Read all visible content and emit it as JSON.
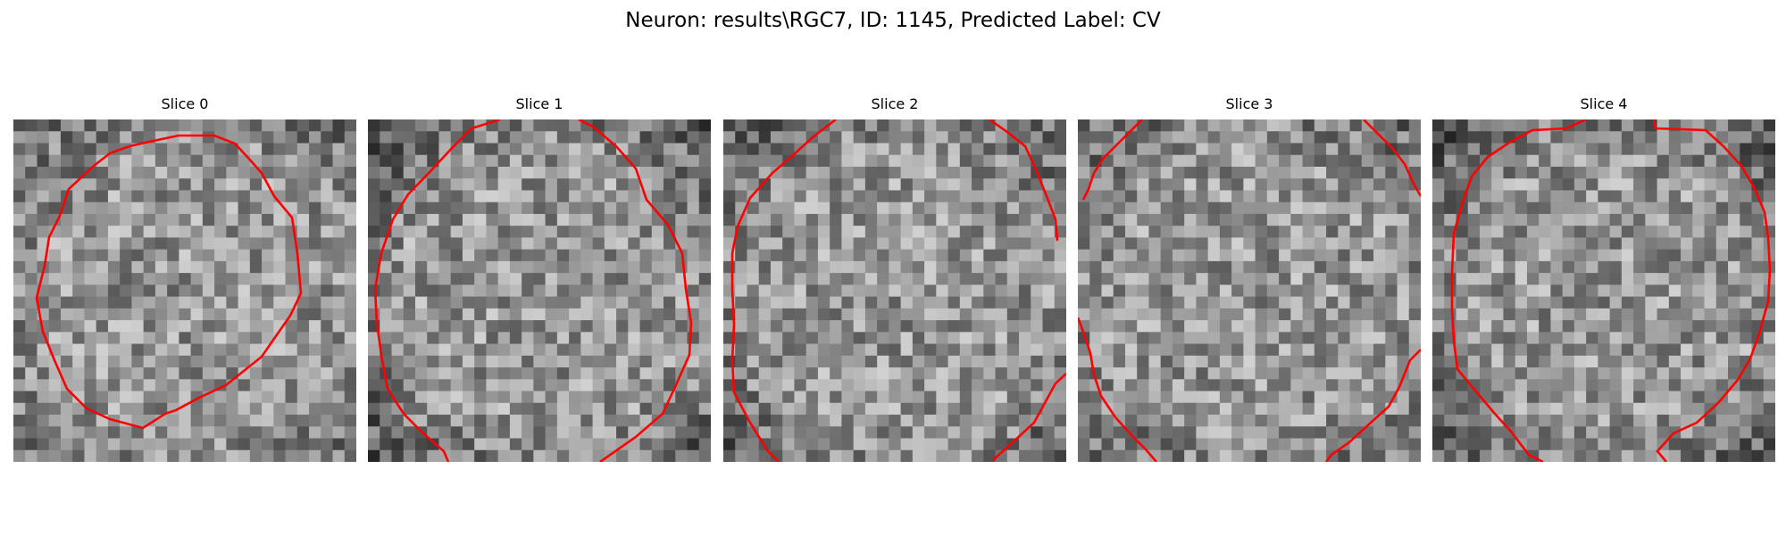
{
  "figure": {
    "title": "Neuron: results\\RGC7, ID: 1145, Predicted Label: CV"
  },
  "panels": [
    {
      "title": "Slice 0",
      "seed": 11,
      "vignette": 0.35
    },
    {
      "title": "Slice 1",
      "seed": 23,
      "vignette": 0.55
    },
    {
      "title": "Slice 2",
      "seed": 37,
      "vignette": 0.45
    },
    {
      "title": "Slice 3",
      "seed": 41,
      "vignette": 0.4
    },
    {
      "title": "Slice 4",
      "seed": 59,
      "vignette": 0.55
    }
  ],
  "colors": {
    "contour": "#ff0000",
    "colormap": "gray"
  }
}
